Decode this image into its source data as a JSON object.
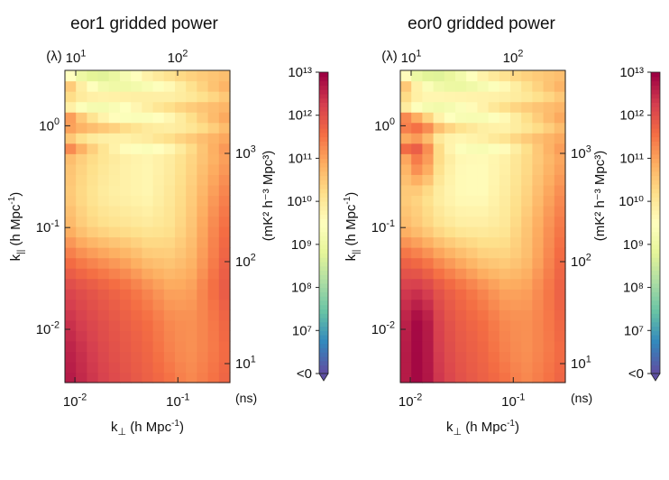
{
  "chart_data": [
    {
      "type": "heatmap",
      "title": "eor1 gridded power",
      "xlabel": "k⊥ (h Mpc⁻¹)",
      "ylabel": "k|| (h Mpc⁻¹)",
      "xscale": "log",
      "yscale": "log",
      "xlim": [
        0.008,
        0.32
      ],
      "ylim": [
        0.003,
        3.5
      ],
      "x_ticks": [
        {
          "value": 0.01,
          "base": "10",
          "exp": "-2"
        },
        {
          "value": 0.1,
          "base": "10",
          "exp": "-1"
        }
      ],
      "y_ticks": [
        {
          "value": 0.01,
          "base": "10",
          "exp": "-2"
        },
        {
          "value": 0.1,
          "base": "10",
          "exp": "-1"
        },
        {
          "value": 1,
          "base": "10",
          "exp": "0"
        }
      ],
      "top_axis": {
        "unit_label": "(λ)",
        "ticks": [
          {
            "value": 10,
            "base": "10",
            "exp": "1"
          },
          {
            "value": 100,
            "base": "10",
            "exp": "2"
          }
        ]
      },
      "right_axis": {
        "unit_label": "(ns)",
        "ticks": [
          {
            "value": 10,
            "base": "10",
            "exp": "1"
          },
          {
            "value": 100,
            "base": "10",
            "exp": "2"
          },
          {
            "value": 1000,
            "base": "10",
            "exp": "3"
          }
        ]
      },
      "colorbar": {
        "label": "(mK² h⁻³ Mpc³)",
        "scale": "log",
        "range": [
          1000000.0,
          10000000000000.0
        ],
        "tick_labels": [
          "<0",
          "10⁷",
          "10⁸",
          "10⁹",
          "10¹⁰",
          "10¹¹",
          "10¹²",
          "10¹³"
        ],
        "colormap": "Spectral_r"
      },
      "approx_log10_power_grid": {
        "note_rows": "rows from low k|| (bottom) to high k|| (top); cols from low k⊥ to high k⊥",
        "rows": [
          [
            12.8,
            12.5,
            12.2,
            12.0,
            11.8,
            11.6,
            11.3,
            11.5,
            11.8
          ],
          [
            12.7,
            12.4,
            12.1,
            11.9,
            11.7,
            11.4,
            11.2,
            11.4,
            11.7
          ],
          [
            12.5,
            12.2,
            12.0,
            11.8,
            11.6,
            11.3,
            11.2,
            11.4,
            11.8
          ],
          [
            12.2,
            12.0,
            11.8,
            11.6,
            11.3,
            11.0,
            11.0,
            11.5,
            12.0
          ],
          [
            11.6,
            11.3,
            11.1,
            10.9,
            10.6,
            10.5,
            10.7,
            11.3,
            11.9
          ],
          [
            10.9,
            10.4,
            10.2,
            10.1,
            10.0,
            10.1,
            10.5,
            11.2,
            11.7
          ],
          [
            10.6,
            10.2,
            9.9,
            9.8,
            9.7,
            10.0,
            10.4,
            11.0,
            11.5
          ],
          [
            10.7,
            10.3,
            10.0,
            9.8,
            9.7,
            9.9,
            10.3,
            10.8,
            11.2
          ],
          [
            11.3,
            10.6,
            10.2,
            9.9,
            9.8,
            9.9,
            10.2,
            10.6,
            11.0
          ],
          [
            10.4,
            9.6,
            9.4,
            9.5,
            9.7,
            9.9,
            10.2,
            10.5,
            10.8
          ],
          [
            10.2,
            9.3,
            9.0,
            9.3,
            9.6,
            9.8,
            10.1,
            10.4,
            10.7
          ]
        ]
      }
    },
    {
      "type": "heatmap",
      "title": "eor0 gridded power",
      "xlabel": "k⊥ (h Mpc⁻¹)",
      "ylabel": "k|| (h Mpc⁻¹)",
      "xscale": "log",
      "yscale": "log",
      "xlim": [
        0.008,
        0.32
      ],
      "ylim": [
        0.003,
        3.5
      ],
      "x_ticks": [
        {
          "value": 0.01,
          "base": "10",
          "exp": "-2"
        },
        {
          "value": 0.1,
          "base": "10",
          "exp": "-1"
        }
      ],
      "y_ticks": [
        {
          "value": 0.01,
          "base": "10",
          "exp": "-2"
        },
        {
          "value": 0.1,
          "base": "10",
          "exp": "-1"
        },
        {
          "value": 1,
          "base": "10",
          "exp": "0"
        }
      ],
      "top_axis": {
        "unit_label": "(λ)",
        "ticks": [
          {
            "value": 10,
            "base": "10",
            "exp": "1"
          },
          {
            "value": 100,
            "base": "10",
            "exp": "2"
          }
        ]
      },
      "right_axis": {
        "unit_label": "(ns)",
        "ticks": [
          {
            "value": 10,
            "base": "10",
            "exp": "1"
          },
          {
            "value": 100,
            "base": "10",
            "exp": "2"
          },
          {
            "value": 1000,
            "base": "10",
            "exp": "3"
          }
        ]
      },
      "colorbar": {
        "label": "(mK² h⁻³ Mpc³)",
        "scale": "log",
        "range": [
          1000000.0,
          10000000000000.0
        ],
        "tick_labels": [
          "<0",
          "10⁷",
          "10⁸",
          "10⁹",
          "10¹⁰",
          "10¹¹",
          "10¹²",
          "10¹³"
        ],
        "colormap": "Spectral_r"
      },
      "approx_log10_power_grid": {
        "note_rows": "rows from low k|| (bottom) to high k|| (top); cols from low k⊥ to high k⊥",
        "rows": [
          [
            12.6,
            13.0,
            12.3,
            12.0,
            11.8,
            11.6,
            11.3,
            11.5,
            11.8
          ],
          [
            12.6,
            13.0,
            12.2,
            11.9,
            11.7,
            11.4,
            11.2,
            11.4,
            11.7
          ],
          [
            12.5,
            13.0,
            12.1,
            11.8,
            11.6,
            11.3,
            11.2,
            11.4,
            11.8
          ],
          [
            12.3,
            12.4,
            11.9,
            11.6,
            11.3,
            11.0,
            11.0,
            11.4,
            11.9
          ],
          [
            11.7,
            11.5,
            11.1,
            10.8,
            10.5,
            10.4,
            10.6,
            11.2,
            11.8
          ],
          [
            10.8,
            10.5,
            10.1,
            9.9,
            9.9,
            10.0,
            10.5,
            11.1,
            11.6
          ],
          [
            10.5,
            10.3,
            9.8,
            9.6,
            9.6,
            9.9,
            10.3,
            10.9,
            11.4
          ],
          [
            10.6,
            11.6,
            10.0,
            9.6,
            9.6,
            9.8,
            10.2,
            10.7,
            11.1
          ],
          [
            11.5,
            11.7,
            10.2,
            9.8,
            9.7,
            9.8,
            10.2,
            10.6,
            11.0
          ],
          [
            10.5,
            9.4,
            9.3,
            9.4,
            9.6,
            9.9,
            10.2,
            10.5,
            10.8
          ],
          [
            10.3,
            9.3,
            9.0,
            9.2,
            9.6,
            9.8,
            10.1,
            10.4,
            10.7
          ]
        ]
      }
    }
  ]
}
